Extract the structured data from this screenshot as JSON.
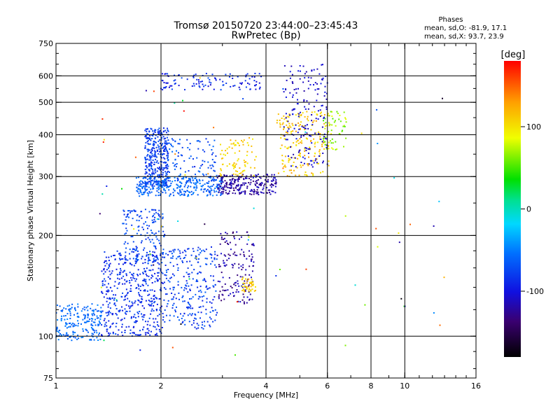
{
  "chart_data": {
    "type": "scatter",
    "title": "Tromsø 20150720 23:44:00–23:45:43",
    "subtitle": "RwPretec (Bp)",
    "xlabel": "Frequency [MHz]",
    "ylabel": "Stationary phase Virtual Height [km]",
    "x_scale": "log",
    "y_scale": "log",
    "xlim": [
      1,
      16
    ],
    "ylim": [
      75,
      750
    ],
    "x_ticks": [
      1,
      2,
      4,
      6,
      8,
      10,
      16
    ],
    "x_tick_labels": [
      "1",
      "2",
      "4",
      "6",
      "8",
      "10",
      "16"
    ],
    "y_ticks": [
      75,
      100,
      200,
      300,
      400,
      500,
      600,
      750
    ],
    "y_tick_labels": [
      "75",
      "100",
      "200",
      "300",
      "400",
      "500",
      "600",
      "750"
    ],
    "grid": true,
    "x_grid": [
      2,
      4,
      6,
      8,
      10
    ],
    "y_grid": [
      100,
      200,
      300,
      400,
      500,
      600
    ],
    "stats": {
      "title": "Phases",
      "line_o": "mean, sd,O: -81.9, 17.1",
      "line_x": "mean, sd,X:  93.7, 23.9"
    },
    "colorbar": {
      "label": "[deg]",
      "range": [
        -180,
        180
      ],
      "ticks": [
        100,
        0,
        -100
      ],
      "tick_labels": [
        "100",
        "0",
        "-100"
      ]
    },
    "clusters": [
      {
        "x": [
          1.0,
          1.35
        ],
        "y": [
          97,
          125
        ],
        "phase": [
          -70,
          -45
        ],
        "n": 200
      },
      {
        "x": [
          1.35,
          2.05
        ],
        "y": [
          100,
          180
        ],
        "phase": [
          -100,
          -70
        ],
        "n": 480
      },
      {
        "x": [
          1.55,
          2.05
        ],
        "y": [
          165,
          240
        ],
        "phase": [
          -90,
          -60
        ],
        "n": 160
      },
      {
        "x": [
          2.05,
          2.9
        ],
        "y": [
          105,
          185
        ],
        "phase": [
          -95,
          -60
        ],
        "n": 260
      },
      {
        "x": [
          2.9,
          3.7
        ],
        "y": [
          125,
          205
        ],
        "phase": [
          -140,
          -105
        ],
        "n": 150
      },
      {
        "x": [
          3.4,
          3.75
        ],
        "y": [
          135,
          150
        ],
        "phase": [
          95,
          130
        ],
        "n": 40
      },
      {
        "x": [
          1.8,
          2.1
        ],
        "y": [
          280,
          420
        ],
        "phase": [
          -95,
          -65
        ],
        "n": 340
      },
      {
        "x": [
          1.7,
          3.0
        ],
        "y": [
          262,
          300
        ],
        "phase": [
          -75,
          -45
        ],
        "n": 300
      },
      {
        "x": [
          2.05,
          2.9
        ],
        "y": [
          290,
          390
        ],
        "phase": [
          -85,
          -55
        ],
        "n": 110
      },
      {
        "x": [
          2.9,
          4.3
        ],
        "y": [
          265,
          305
        ],
        "phase": [
          -135,
          -105
        ],
        "n": 230
      },
      {
        "x": [
          2.95,
          3.75
        ],
        "y": [
          300,
          395
        ],
        "phase": [
          90,
          125
        ],
        "n": 80
      },
      {
        "x": [
          4.3,
          6.1
        ],
        "y": [
          300,
          470
        ],
        "phase": [
          90,
          130
        ],
        "n": 200
      },
      {
        "x": [
          4.5,
          6.0
        ],
        "y": [
          320,
          650
        ],
        "phase": [
          -120,
          -95
        ],
        "n": 170
      },
      {
        "x": [
          2.0,
          3.9
        ],
        "y": [
          545,
          610
        ],
        "phase": [
          -110,
          -70
        ],
        "n": 110
      },
      {
        "x": [
          5.8,
          6.8
        ],
        "y": [
          360,
          470
        ],
        "phase": [
          50,
          90
        ],
        "n": 55
      },
      {
        "x": [
          1.3,
          13.0
        ],
        "y": [
          85,
          630
        ],
        "phase": [
          -180,
          180
        ],
        "n": 70
      }
    ]
  }
}
